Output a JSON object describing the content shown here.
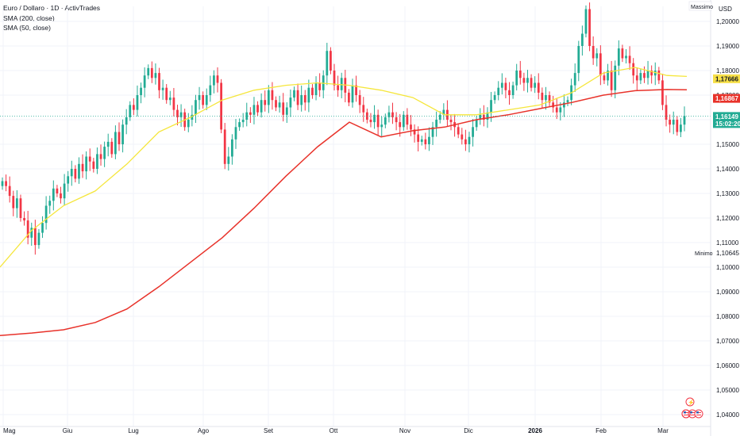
{
  "legend": {
    "title": "Euro / Dollaro · 1D · ActivTrades",
    "sma200": "SMA (200, close)",
    "sma50": "SMA (50, close)"
  },
  "price_axis": {
    "currency": "USD",
    "max_label": "Massimo",
    "min_label": "Minimo",
    "min_value": "1,10645",
    "ticks": [
      "1,20000",
      "1,19000",
      "1,18000",
      "1,17000",
      "1,16000",
      "1,15000",
      "1,14000",
      "1,13000",
      "1,12000",
      "1,11000",
      "1,10000",
      "1,09000",
      "1,08000",
      "1,07000",
      "1,06000",
      "1,05000",
      "1,04000"
    ]
  },
  "badges": {
    "sma50": {
      "value": "1,17666",
      "color": "#f7e047"
    },
    "sma200": {
      "value": "1,16867",
      "color": "#e8322a"
    },
    "current": {
      "value": "1,16149",
      "time": "15:02:20",
      "color": "#22ab94"
    }
  },
  "time_axis": [
    "Mag",
    "Giu",
    "Lug",
    "Ago",
    "Set",
    "Ott",
    "Nov",
    "Dic",
    "2026",
    "Feb",
    "Mar"
  ],
  "colors": {
    "up": "#22ab94",
    "down": "#f23645",
    "sma50": "#f5e63b",
    "sma200": "#e8322a"
  },
  "chart_data": {
    "type": "candlestick",
    "title": "Euro / Dollaro · 1D · ActivTrades",
    "ylim": [
      1.038,
      1.207
    ],
    "months": [
      "Mag",
      "Giu",
      "Lug",
      "Ago",
      "Set",
      "Ott",
      "Nov",
      "Dic",
      "2026",
      "Feb",
      "Mar"
    ],
    "close_series": [
      1.135,
      1.133,
      1.129,
      1.124,
      1.128,
      1.12,
      1.119,
      1.112,
      1.116,
      1.109,
      1.114,
      1.118,
      1.125,
      1.127,
      1.132,
      1.13,
      1.128,
      1.134,
      1.137,
      1.14,
      1.136,
      1.142,
      1.139,
      1.145,
      1.143,
      1.14,
      1.146,
      1.144,
      1.149,
      1.151,
      1.146,
      1.155,
      1.15,
      1.158,
      1.161,
      1.166,
      1.164,
      1.17,
      1.173,
      1.178,
      1.181,
      1.177,
      1.179,
      1.172,
      1.173,
      1.168,
      1.169,
      1.164,
      1.161,
      1.163,
      1.157,
      1.16,
      1.162,
      1.168,
      1.17,
      1.166,
      1.17,
      1.174,
      1.178,
      1.175,
      1.156,
      1.142,
      1.145,
      1.152,
      1.157,
      1.159,
      1.16,
      1.163,
      1.162,
      1.166,
      1.163,
      1.168,
      1.166,
      1.172,
      1.168,
      1.165,
      1.167,
      1.162,
      1.165,
      1.169,
      1.172,
      1.166,
      1.17,
      1.167,
      1.173,
      1.17,
      1.175,
      1.172,
      1.178,
      1.188,
      1.18,
      1.174,
      1.172,
      1.177,
      1.171,
      1.167,
      1.174,
      1.17,
      1.166,
      1.163,
      1.16,
      1.159,
      1.162,
      1.157,
      1.158,
      1.161,
      1.163,
      1.161,
      1.159,
      1.157,
      1.162,
      1.158,
      1.156,
      1.154,
      1.151,
      1.152,
      1.15,
      1.153,
      1.157,
      1.16,
      1.162,
      1.164,
      1.16,
      1.159,
      1.157,
      1.154,
      1.152,
      1.15,
      1.153,
      1.157,
      1.16,
      1.162,
      1.16,
      1.163,
      1.168,
      1.17,
      1.173,
      1.175,
      1.172,
      1.17,
      1.174,
      1.18,
      1.177,
      1.175,
      1.177,
      1.173,
      1.175,
      1.171,
      1.168,
      1.17,
      1.167,
      1.165,
      1.163,
      1.165,
      1.167,
      1.168,
      1.174,
      1.179,
      1.19,
      1.195,
      1.205,
      1.19,
      1.185,
      1.187,
      1.178,
      1.176,
      1.18,
      1.172,
      1.182,
      1.189,
      1.185,
      1.186,
      1.183,
      1.178,
      1.176,
      1.179,
      1.177,
      1.18,
      1.178,
      1.18,
      1.176,
      1.166,
      1.16,
      1.158,
      1.16,
      1.155,
      1.158,
      1.1615
    ]
  }
}
